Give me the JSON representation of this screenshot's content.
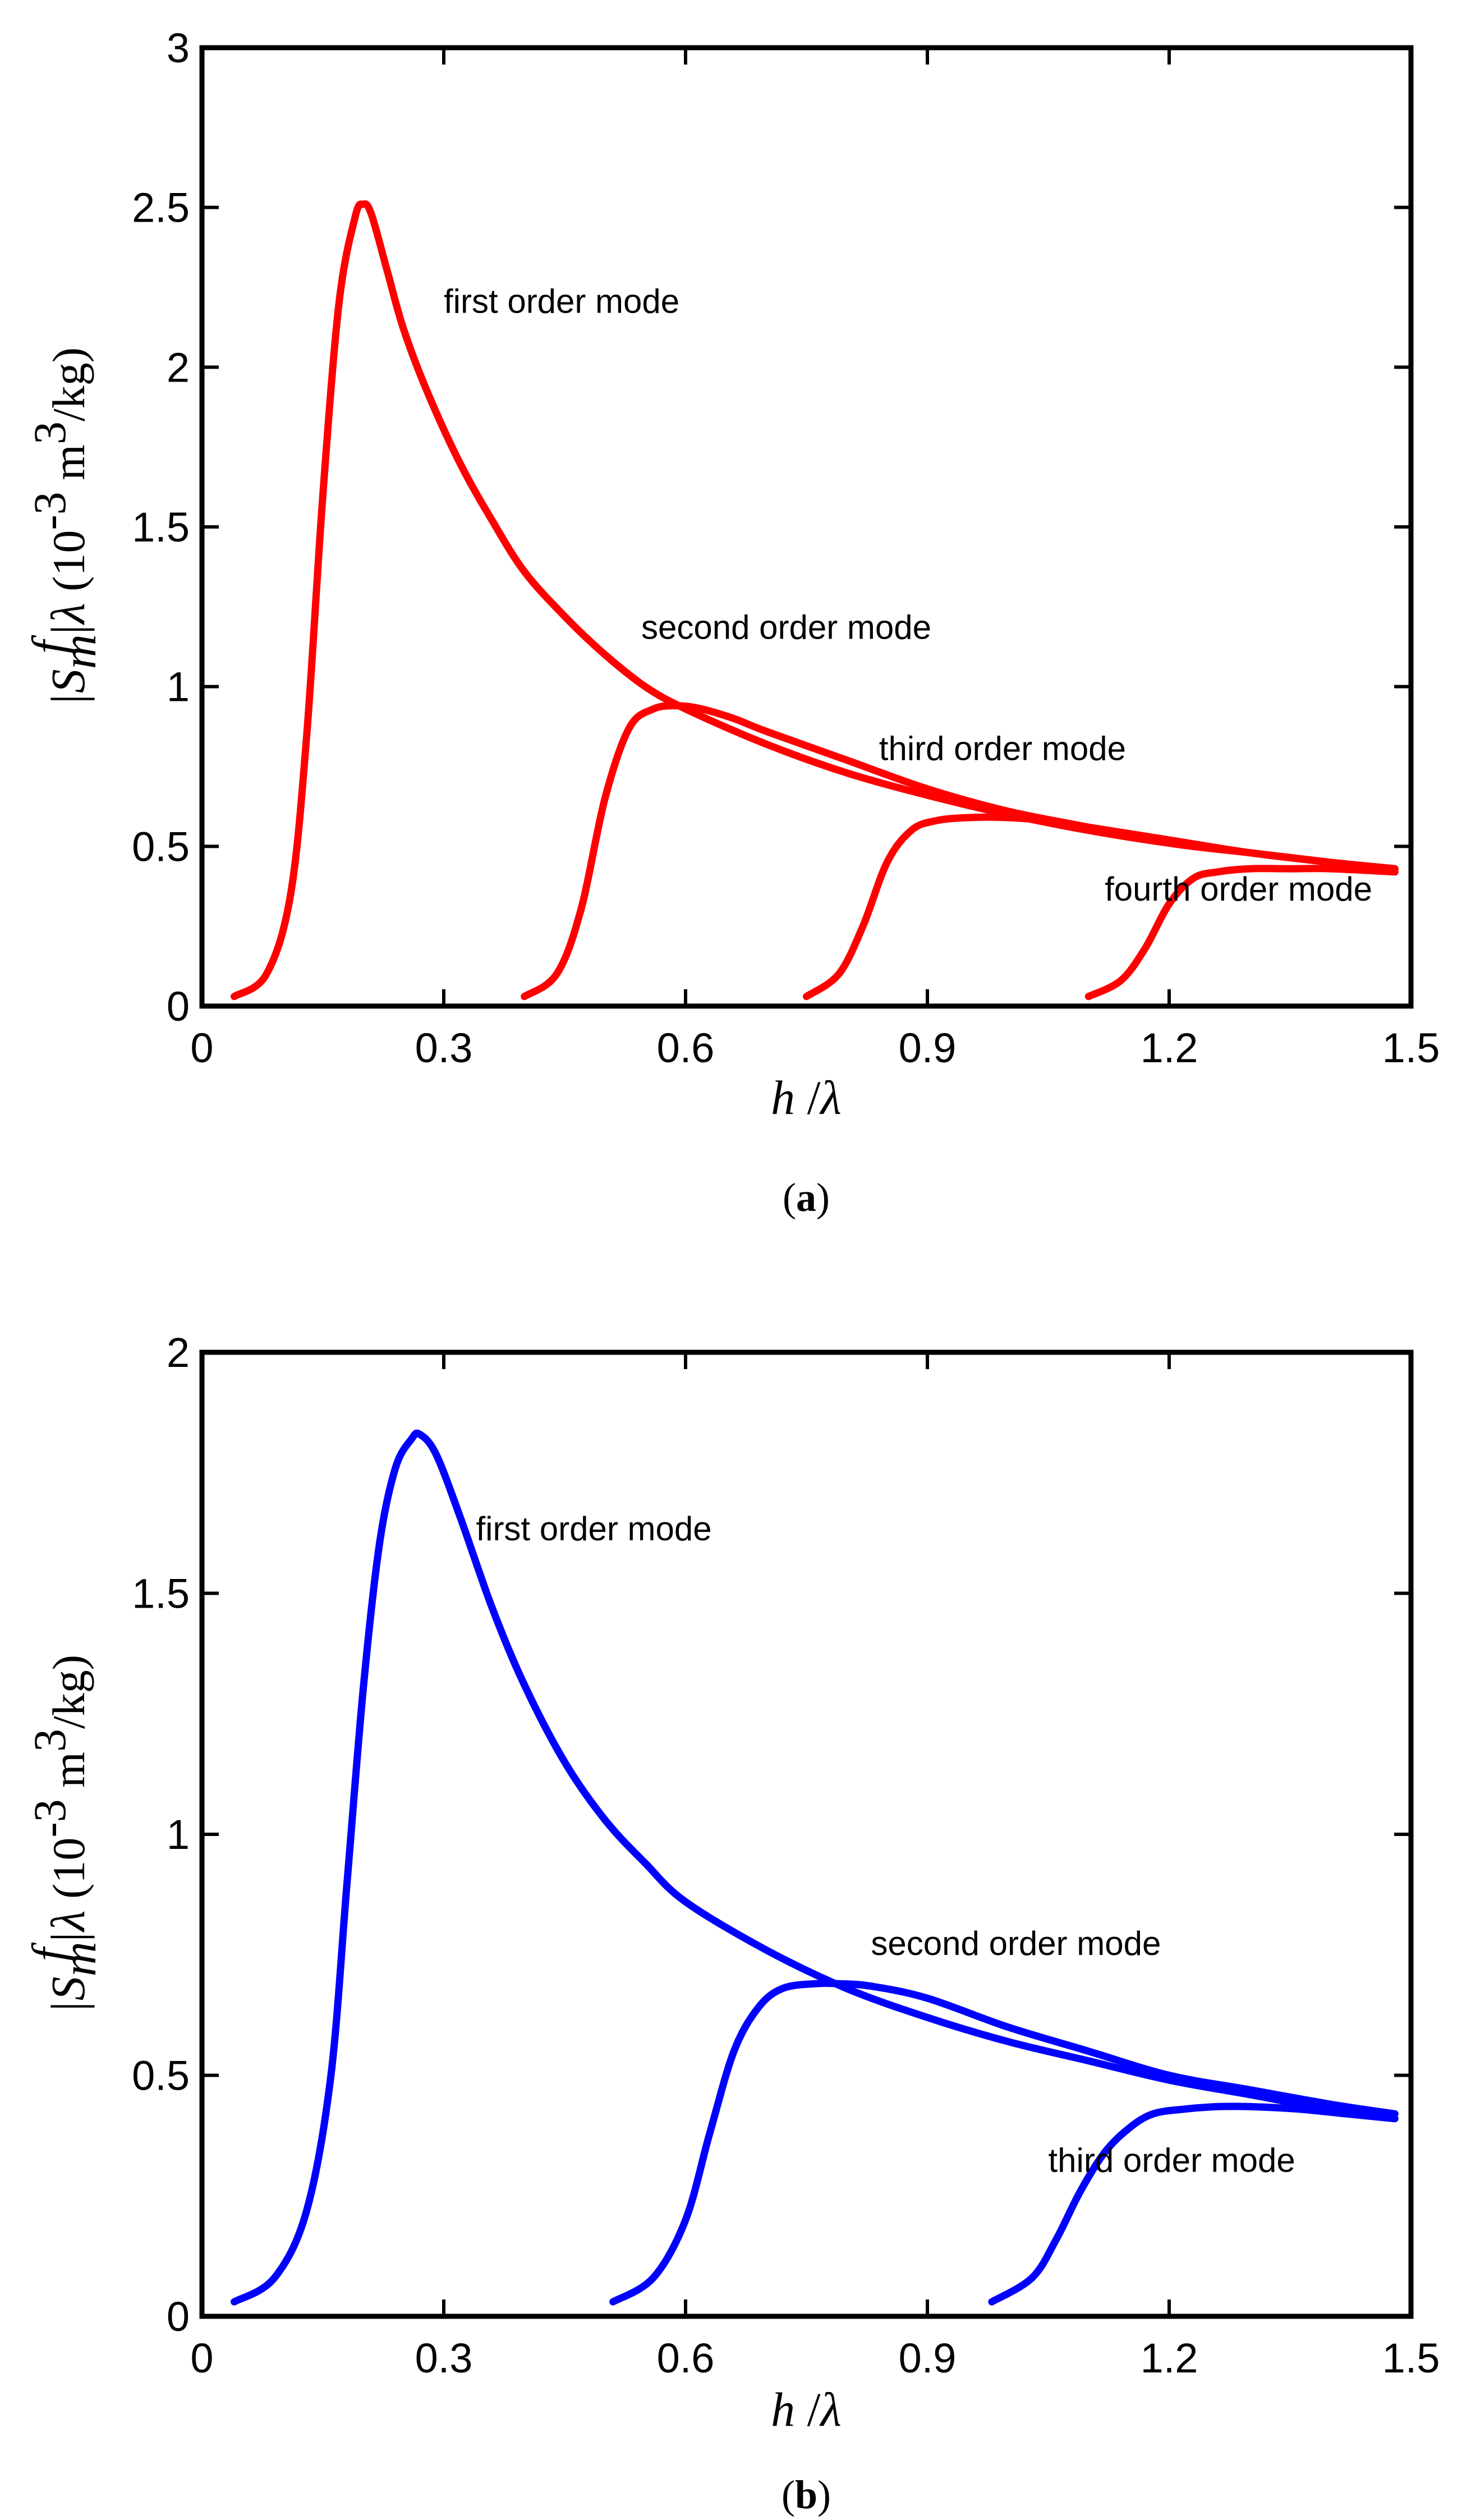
{
  "panels": [
    {
      "id": "a",
      "caption_open": "(",
      "caption_letter": "a",
      "caption_close": ")",
      "xlabel_var": "h",
      "xlabel_sep": " /",
      "xlabel_lambda": "λ",
      "ylabel_S": "|S",
      "ylabel_sub": "m",
      "ylabel_sup": "f",
      "ylabel_bar": "|",
      "ylabel_lambda": "λ",
      "ylabel_units_open": "  (10",
      "ylabel_units_exp": "-3",
      "ylabel_units_mid": " m",
      "ylabel_units_exp2": "3",
      "ylabel_units_close": "/kg)",
      "xticks": [
        "0",
        "0.3",
        "0.6",
        "0.9",
        "1.2",
        "1.5"
      ],
      "yticks": [
        "0",
        "0.5",
        "1",
        "1.5",
        "2",
        "2.5",
        "3"
      ]
    },
    {
      "id": "b",
      "caption_open": "(",
      "caption_letter": "b",
      "caption_close": ")",
      "xlabel_var": "h",
      "xlabel_sep": " /",
      "xlabel_lambda": "λ",
      "ylabel_S": "|S",
      "ylabel_sub": "m",
      "ylabel_sup": "f",
      "ylabel_bar": "|",
      "ylabel_lambda": "λ",
      "ylabel_units_open": "  (10",
      "ylabel_units_exp": "-3",
      "ylabel_units_mid": " m",
      "ylabel_units_exp2": "3",
      "ylabel_units_close": "/kg)",
      "xticks": [
        "0",
        "0.3",
        "0.6",
        "0.9",
        "1.2",
        "1.5"
      ],
      "yticks": [
        "0",
        "0.5",
        "1",
        "1.5",
        "2"
      ]
    }
  ],
  "chart_data": [
    {
      "type": "line",
      "panel": "a",
      "xlabel": "h /λ",
      "ylabel": "|S_m^f|λ (10^-3 m^3/kg)",
      "xlim": [
        0,
        1.5
      ],
      "ylim": [
        0,
        3
      ],
      "color": "#ff0000",
      "series": [
        {
          "name": "first order mode",
          "x": [
            0.04,
            0.08,
            0.11,
            0.13,
            0.15,
            0.17,
            0.19,
            0.2,
            0.21,
            0.23,
            0.25,
            0.28,
            0.32,
            0.36,
            0.4,
            0.45,
            0.5,
            0.55,
            0.6,
            0.7,
            0.8,
            0.9,
            1.0,
            1.1,
            1.2,
            1.3,
            1.4,
            1.48
          ],
          "y": [
            0.03,
            0.1,
            0.35,
            0.85,
            1.6,
            2.2,
            2.47,
            2.51,
            2.48,
            2.3,
            2.12,
            1.92,
            1.7,
            1.52,
            1.36,
            1.22,
            1.1,
            1.0,
            0.93,
            0.82,
            0.73,
            0.66,
            0.6,
            0.55,
            0.51,
            0.48,
            0.45,
            0.43
          ]
        },
        {
          "name": "second order mode",
          "x": [
            0.4,
            0.44,
            0.47,
            0.5,
            0.53,
            0.56,
            0.59,
            0.62,
            0.66,
            0.7,
            0.8,
            0.9,
            1.0,
            1.1,
            1.2,
            1.3,
            1.4,
            1.48
          ],
          "y": [
            0.03,
            0.1,
            0.3,
            0.65,
            0.87,
            0.93,
            0.94,
            0.93,
            0.9,
            0.86,
            0.77,
            0.68,
            0.61,
            0.56,
            0.51,
            0.48,
            0.45,
            0.43
          ]
        },
        {
          "name": "third order mode",
          "x": [
            0.75,
            0.79,
            0.82,
            0.85,
            0.88,
            0.91,
            0.95,
            1.0,
            1.05,
            1.1,
            1.2,
            1.3,
            1.4,
            1.48
          ],
          "y": [
            0.03,
            0.1,
            0.25,
            0.45,
            0.55,
            0.58,
            0.59,
            0.59,
            0.58,
            0.56,
            0.52,
            0.48,
            0.45,
            0.43
          ]
        },
        {
          "name": "fourth order mode",
          "x": [
            1.1,
            1.14,
            1.17,
            1.2,
            1.23,
            1.26,
            1.3,
            1.35,
            1.4,
            1.48
          ],
          "y": [
            0.03,
            0.08,
            0.18,
            0.32,
            0.4,
            0.42,
            0.43,
            0.43,
            0.43,
            0.42
          ]
        }
      ],
      "annotations": [
        {
          "text": "first order mode",
          "x": 0.3,
          "y": 2.17
        },
        {
          "text": "second order mode",
          "x": 0.545,
          "y": 1.15
        },
        {
          "text": "third order mode",
          "x": 0.84,
          "y": 0.77
        },
        {
          "text": "fourth order mode",
          "x": 1.12,
          "y": 0.33
        }
      ]
    },
    {
      "type": "line",
      "panel": "b",
      "xlabel": "h /λ",
      "ylabel": "|S_m^f|λ (10^-3 m^3/kg)",
      "xlim": [
        0,
        1.5
      ],
      "ylim": [
        0,
        2
      ],
      "color": "#0000ff",
      "series": [
        {
          "name": "first order mode",
          "x": [
            0.04,
            0.09,
            0.13,
            0.16,
            0.18,
            0.2,
            0.22,
            0.24,
            0.26,
            0.27,
            0.29,
            0.32,
            0.36,
            0.4,
            0.45,
            0.5,
            0.55,
            0.6,
            0.7,
            0.8,
            0.9,
            1.0,
            1.1,
            1.2,
            1.3,
            1.4,
            1.48
          ],
          "y": [
            0.03,
            0.08,
            0.22,
            0.5,
            0.9,
            1.3,
            1.6,
            1.76,
            1.82,
            1.83,
            1.79,
            1.66,
            1.47,
            1.31,
            1.15,
            1.03,
            0.94,
            0.86,
            0.76,
            0.68,
            0.62,
            0.57,
            0.53,
            0.49,
            0.46,
            0.43,
            0.42
          ]
        },
        {
          "name": "second order mode",
          "x": [
            0.51,
            0.56,
            0.6,
            0.63,
            0.66,
            0.69,
            0.72,
            0.76,
            0.79,
            0.83,
            0.9,
            1.0,
            1.1,
            1.2,
            1.3,
            1.4,
            1.48
          ],
          "y": [
            0.03,
            0.08,
            0.2,
            0.38,
            0.55,
            0.64,
            0.68,
            0.69,
            0.69,
            0.685,
            0.66,
            0.6,
            0.55,
            0.5,
            0.47,
            0.44,
            0.42
          ]
        },
        {
          "name": "third order mode",
          "x": [
            0.98,
            1.03,
            1.06,
            1.09,
            1.12,
            1.15,
            1.18,
            1.22,
            1.26,
            1.3,
            1.36,
            1.42,
            1.48
          ],
          "y": [
            0.03,
            0.08,
            0.16,
            0.26,
            0.34,
            0.39,
            0.42,
            0.43,
            0.435,
            0.435,
            0.43,
            0.42,
            0.41
          ]
        }
      ],
      "annotations": [
        {
          "text": "first order mode",
          "x": 0.34,
          "y": 1.61
        },
        {
          "text": "second order mode",
          "x": 0.83,
          "y": 0.75
        },
        {
          "text": "third order mode",
          "x": 1.05,
          "y": 0.3
        }
      ]
    }
  ]
}
